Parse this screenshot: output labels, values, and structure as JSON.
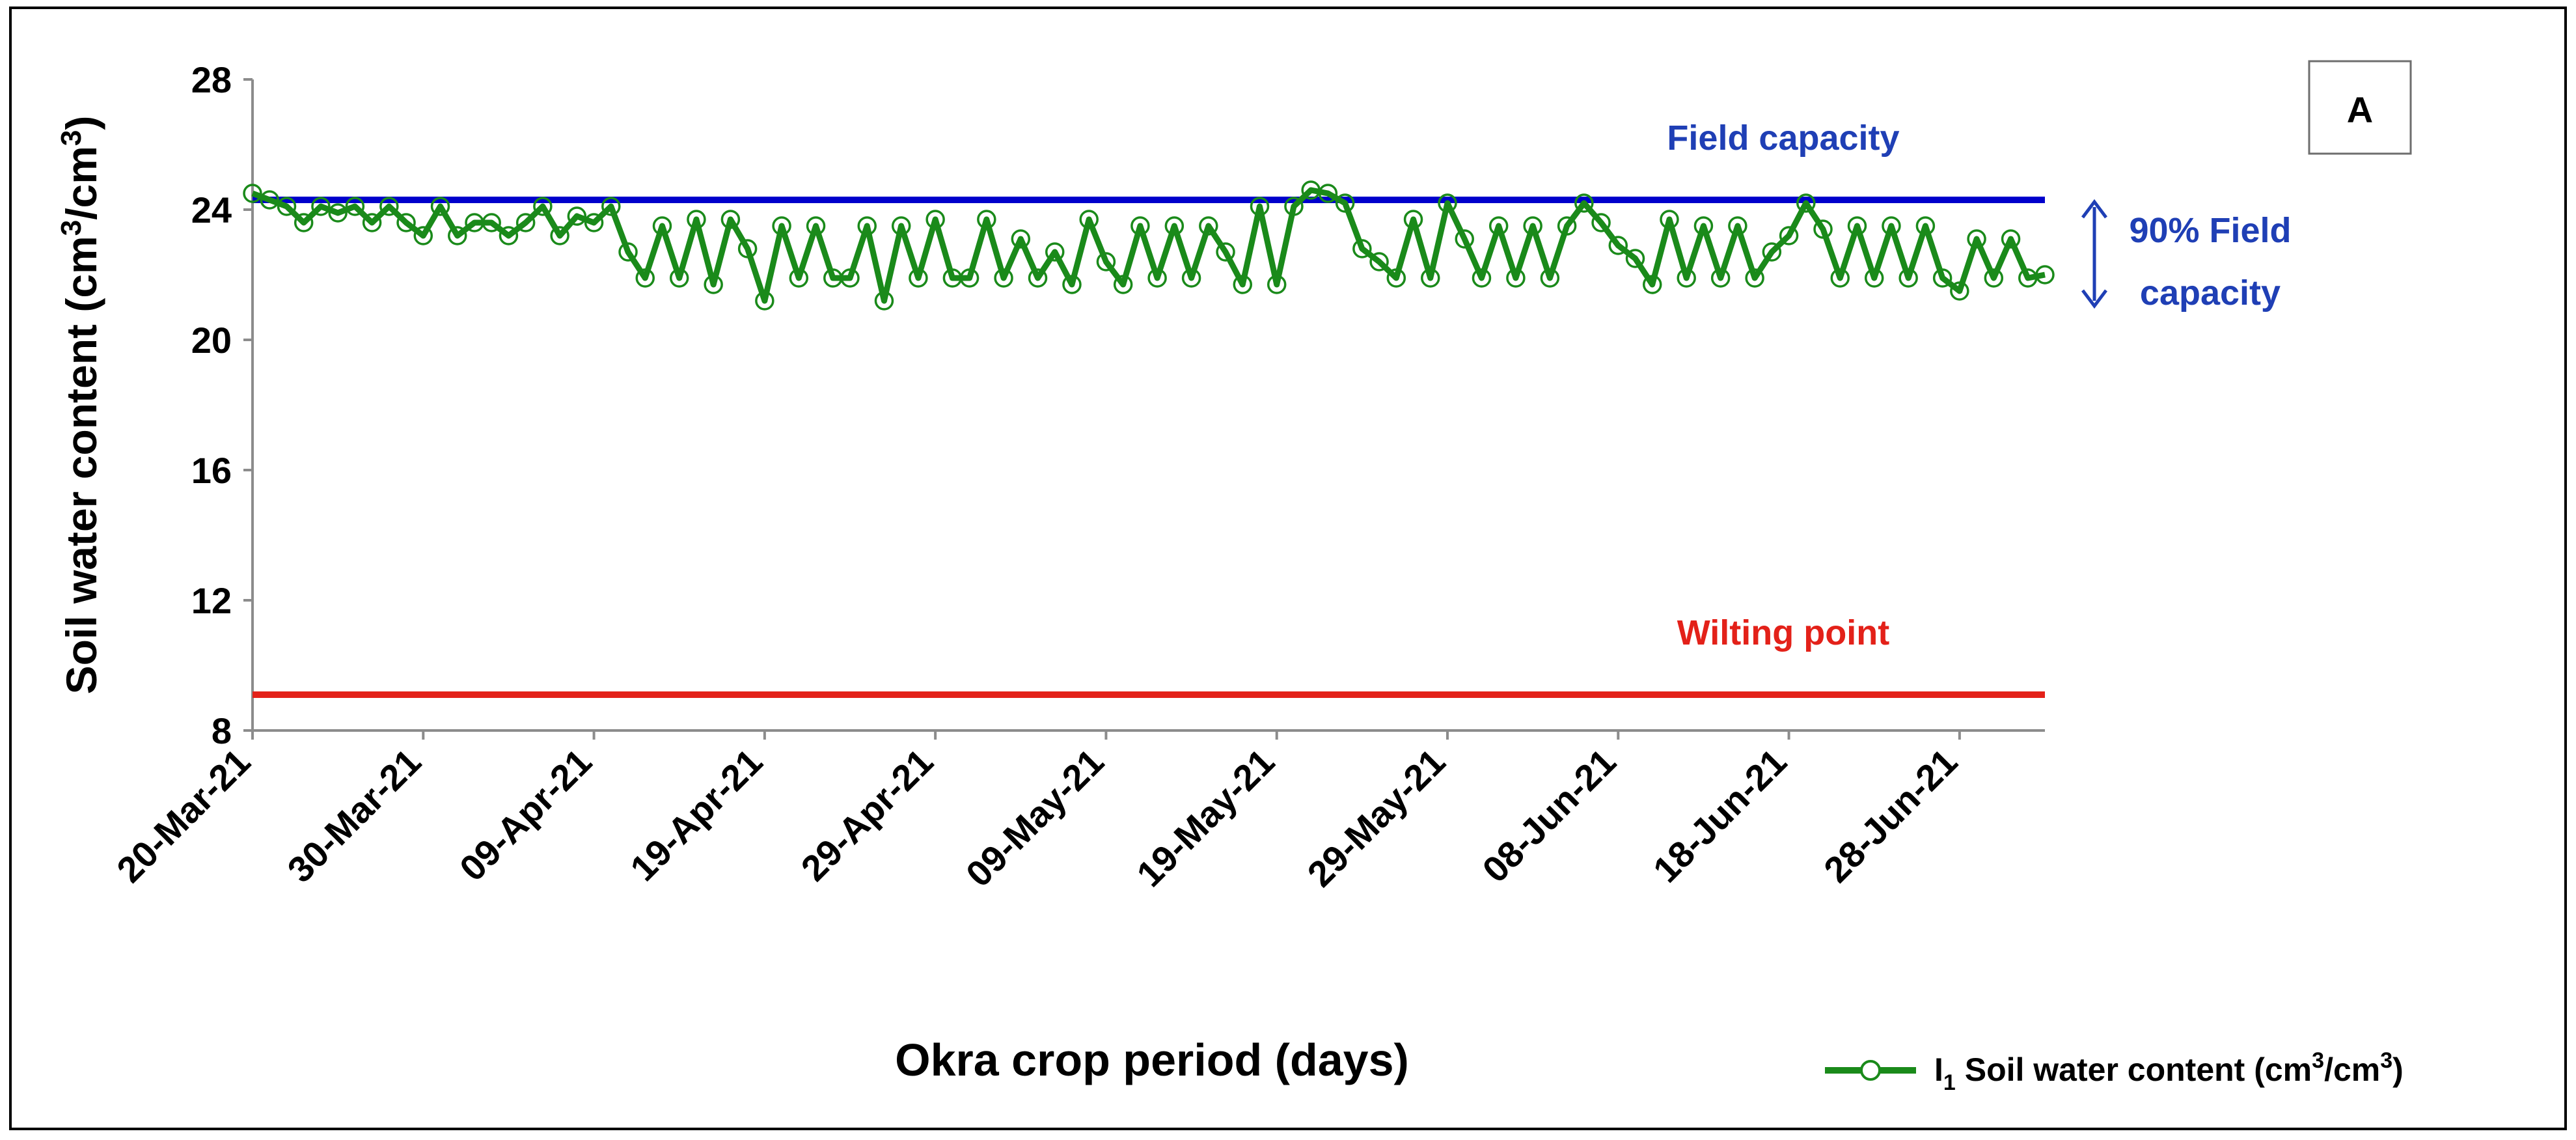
{
  "chart_data": {
    "type": "line",
    "panel_label": "A",
    "xlabel": "Okra crop period (days)",
    "ylabel": "Soil water content (cm³/cm³)",
    "ylabel_parts": {
      "main": "Soil water content (cm",
      "sup1": "3",
      "mid": "/cm",
      "sup2": "3",
      "end": ")"
    },
    "ylim": [
      8,
      28
    ],
    "y_ticks": [
      8,
      12,
      16,
      20,
      24,
      28
    ],
    "x_tick_labels": [
      "20-Mar-21",
      "30-Mar-21",
      "09-Apr-21",
      "19-Apr-21",
      "29-Apr-21",
      "09-May-21",
      "19-May-21",
      "29-May-21",
      "08-Jun-21",
      "18-Jun-21",
      "28-Jun-21"
    ],
    "x_tick_days": [
      0,
      10,
      20,
      30,
      40,
      50,
      60,
      70,
      80,
      90,
      100
    ],
    "x_range_days": [
      0,
      105
    ],
    "reference_lines": [
      {
        "name": "Field capacity",
        "value": 24.3,
        "color": "#0000cc"
      },
      {
        "name": "Wilting point",
        "value": 9.1,
        "color": "#e32119"
      }
    ],
    "annotation": {
      "line1": "90% Field",
      "line2": "capacity",
      "from": 24.3,
      "to": 21.9,
      "color": "#1f3fb5"
    },
    "legend": {
      "position": "bottom-right",
      "label_main": "I",
      "label_sub": "1",
      "label_rest": " Soil water content (cm",
      "label_sup1": "3",
      "label_mid": "/cm",
      "label_sup2": "3",
      "label_end": ")"
    },
    "series": [
      {
        "name": "I1 Soil water content (cm3/cm3)",
        "color": "#1a8a1a",
        "x": [
          0,
          1,
          2,
          3,
          4,
          5,
          6,
          7,
          8,
          9,
          10,
          11,
          12,
          13,
          14,
          15,
          16,
          17,
          18,
          19,
          20,
          21,
          22,
          23,
          24,
          25,
          26,
          27,
          28,
          29,
          30,
          31,
          32,
          33,
          34,
          35,
          36,
          37,
          38,
          39,
          40,
          41,
          42,
          43,
          44,
          45,
          46,
          47,
          48,
          49,
          50,
          51,
          52,
          53,
          54,
          55,
          56,
          57,
          58,
          59,
          60,
          61,
          62,
          63,
          64,
          65,
          66,
          67,
          68,
          69,
          70,
          71,
          72,
          73,
          74,
          75,
          76,
          77,
          78,
          79,
          80,
          81,
          82,
          83,
          84,
          85,
          86,
          87,
          88,
          89,
          90,
          91,
          92,
          93,
          94,
          95,
          96,
          97,
          98,
          99,
          100,
          101,
          102,
          103,
          104,
          105
        ],
        "values": [
          24.5,
          24.3,
          24.1,
          23.6,
          24.1,
          23.9,
          24.1,
          23.6,
          24.1,
          23.6,
          23.2,
          24.1,
          23.2,
          23.6,
          23.6,
          23.2,
          23.6,
          24.1,
          23.2,
          23.8,
          23.6,
          24.1,
          22.7,
          21.9,
          23.5,
          21.9,
          23.7,
          21.7,
          23.7,
          22.8,
          21.2,
          23.5,
          21.9,
          23.5,
          21.9,
          21.9,
          23.5,
          21.2,
          23.5,
          21.9,
          23.7,
          21.9,
          21.9,
          23.7,
          21.9,
          23.1,
          21.9,
          22.7,
          21.7,
          23.7,
          22.4,
          21.7,
          23.5,
          21.9,
          23.5,
          21.9,
          23.5,
          22.7,
          21.7,
          24.1,
          21.7,
          24.1,
          24.6,
          24.5,
          24.2,
          22.8,
          22.4,
          21.9,
          23.7,
          21.9,
          24.2,
          23.1,
          21.9,
          23.5,
          21.9,
          23.5,
          21.9,
          23.5,
          24.2,
          23.6,
          22.9,
          22.5,
          21.7,
          23.7,
          21.9,
          23.5,
          21.9,
          23.5,
          21.9,
          22.7,
          23.2,
          24.2,
          23.4,
          21.9,
          23.5,
          21.9,
          23.5,
          21.9,
          23.5,
          21.9,
          21.5,
          23.1,
          21.9,
          23.1,
          21.9,
          22.0
        ]
      }
    ]
  }
}
